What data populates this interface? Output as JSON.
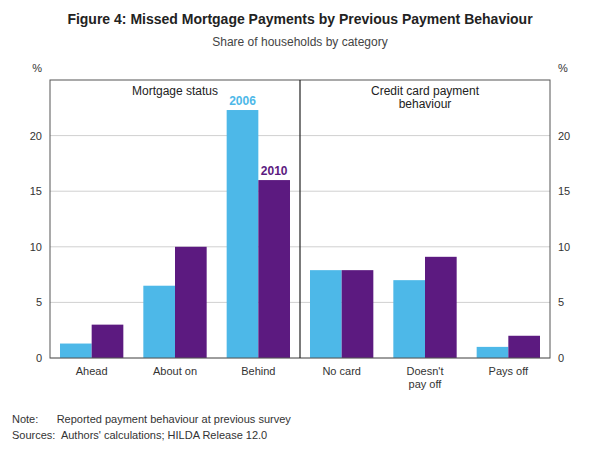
{
  "chart_data": {
    "type": "bar",
    "title": "Figure 4: Missed Mortgage Payments by Previous Payment Behaviour",
    "subtitle": "Share of households by category",
    "categories": [
      "Ahead",
      "About on",
      "Behind",
      "No card",
      "Doesn't\npay off",
      "Pays off"
    ],
    "series": [
      {
        "name": "2006",
        "color": "#4db8e8",
        "values": [
          1.3,
          6.5,
          22.3,
          7.9,
          7.0,
          1.0
        ]
      },
      {
        "name": "2010",
        "color": "#5c1a80",
        "values": [
          3.0,
          10.0,
          16.0,
          7.9,
          9.1,
          2.0
        ]
      }
    ],
    "ylim": [
      0,
      25
    ],
    "yticks": [
      0,
      5,
      10,
      15,
      20
    ],
    "ylabel": "%",
    "grid": true,
    "section_labels": [
      "Mortgage status",
      "Credit card payment\nbehaviour"
    ],
    "notes": [
      "Note:      Reported payment behaviour at previous survey",
      "Sources:  Authors' calculations; HILDA Release 12.0"
    ]
  }
}
